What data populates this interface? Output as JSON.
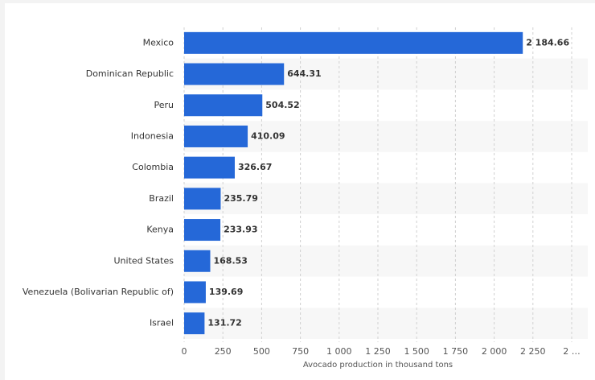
{
  "chart_data": {
    "type": "bar",
    "orientation": "horizontal",
    "x_label": "Avocado production in thousand tons",
    "categories": [
      "Mexico",
      "Dominican Republic",
      "Peru",
      "Indonesia",
      "Colombia",
      "Brazil",
      "Kenya",
      "United States",
      "Venezuela (Bolivarian Republic of)",
      "Israel"
    ],
    "values": [
      2184.66,
      644.31,
      504.52,
      410.09,
      326.67,
      235.79,
      233.93,
      168.53,
      139.69,
      131.72
    ],
    "value_labels": [
      "2 184.66",
      "644.31",
      "504.52",
      "410.09",
      "326.67",
      "235.79",
      "233.93",
      "168.53",
      "139.69",
      "131.72"
    ],
    "color": "#2568d8",
    "xlim": [
      0,
      2500
    ],
    "xticks": [
      0,
      250,
      500,
      750,
      {
        "value": 1000,
        "label": "1 000"
      },
      {
        "value": 1250,
        "label": "1 250"
      },
      {
        "value": 1500,
        "label": "1 500"
      },
      {
        "value": 1750,
        "label": "1 750"
      },
      {
        "value": 2000,
        "label": "2 000"
      },
      {
        "value": 2250,
        "label": "2 250"
      },
      {
        "value": 2500,
        "label": "2 …"
      }
    ],
    "grid": true
  }
}
